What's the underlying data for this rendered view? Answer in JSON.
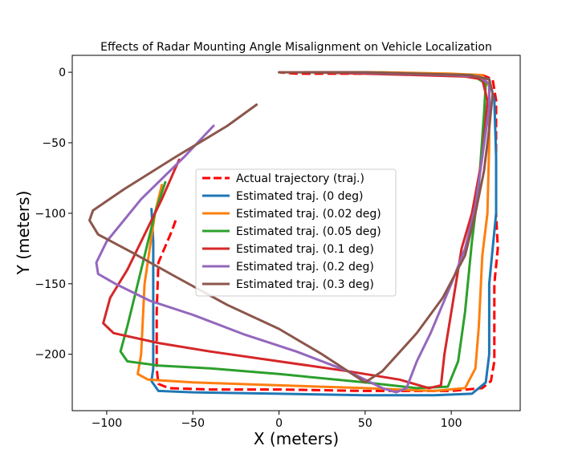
{
  "chart_data": {
    "type": "line",
    "title": "Effects of Radar Mounting Angle Misalignment on Vehicle Localization",
    "xlabel": "X (meters)",
    "ylabel": "Y (meters)",
    "xlim": [
      -120,
      140
    ],
    "ylim": [
      -240,
      12
    ],
    "xticks": [
      -100,
      -50,
      0,
      50,
      100
    ],
    "yticks": [
      0,
      -50,
      -100,
      -150,
      -200
    ],
    "grid": false,
    "legend_position": "center",
    "series": [
      {
        "name": "Actual trajectory (traj.)",
        "color": "#ff0000",
        "style": "dashed",
        "points": [
          [
            -60,
            -105
          ],
          [
            -62,
            -112
          ],
          [
            -70,
            -135
          ],
          [
            -71,
            -170
          ],
          [
            -71,
            -210
          ],
          [
            -70,
            -221
          ],
          [
            -64,
            -224
          ],
          [
            -40,
            -225
          ],
          [
            0,
            -225
          ],
          [
            50,
            -226
          ],
          [
            100,
            -226
          ],
          [
            118,
            -224
          ],
          [
            123,
            -219
          ],
          [
            125,
            -205
          ],
          [
            125,
            -150
          ],
          [
            127,
            -125
          ],
          [
            126,
            -100
          ],
          [
            126,
            -60
          ],
          [
            126,
            -20
          ],
          [
            124,
            -5
          ],
          [
            118,
            -2
          ],
          [
            80,
            -1
          ],
          [
            40,
            -1
          ],
          [
            10,
            -1
          ],
          [
            0,
            0
          ]
        ]
      },
      {
        "name": "Estimated traj. (0 deg)",
        "color": "#1f77b4",
        "style": "solid",
        "points": [
          [
            -74,
            -97
          ],
          [
            -73,
            -120
          ],
          [
            -73,
            -170
          ],
          [
            -73,
            -210
          ],
          [
            -74,
            -219
          ],
          [
            -70,
            -226
          ],
          [
            -50,
            -227
          ],
          [
            0,
            -228
          ],
          [
            50,
            -229
          ],
          [
            90,
            -229
          ],
          [
            112,
            -228
          ],
          [
            120,
            -220
          ],
          [
            122,
            -200
          ],
          [
            122,
            -150
          ],
          [
            126,
            -100
          ],
          [
            126,
            -60
          ],
          [
            125,
            -20
          ],
          [
            122,
            -5
          ],
          [
            115,
            -2
          ],
          [
            80,
            -1
          ],
          [
            40,
            0
          ],
          [
            15,
            0
          ]
        ]
      },
      {
        "name": "Estimated traj. (0.02 deg)",
        "color": "#ff7f0e",
        "style": "solid",
        "points": [
          [
            -68,
            -80
          ],
          [
            -72,
            -100
          ],
          [
            -78,
            -150
          ],
          [
            -80,
            -200
          ],
          [
            -82,
            -214
          ],
          [
            -76,
            -218
          ],
          [
            -50,
            -220
          ],
          [
            0,
            -222
          ],
          [
            50,
            -224
          ],
          [
            90,
            -226
          ],
          [
            108,
            -224
          ],
          [
            114,
            -210
          ],
          [
            116,
            -180
          ],
          [
            118,
            -130
          ],
          [
            121,
            -100
          ],
          [
            122,
            -50
          ],
          [
            122,
            -10
          ],
          [
            118,
            -2
          ],
          [
            100,
            -1
          ],
          [
            60,
            0
          ],
          [
            30,
            0
          ],
          [
            20,
            0
          ]
        ]
      },
      {
        "name": "Estimated traj. (0.05 deg)",
        "color": "#2ca02c",
        "style": "solid",
        "points": [
          [
            -66,
            -78
          ],
          [
            -72,
            -100
          ],
          [
            -82,
            -150
          ],
          [
            -88,
            -180
          ],
          [
            -92,
            -198
          ],
          [
            -88,
            -205
          ],
          [
            -70,
            -208
          ],
          [
            -40,
            -210
          ],
          [
            0,
            -214
          ],
          [
            50,
            -220
          ],
          [
            80,
            -224
          ],
          [
            98,
            -223
          ],
          [
            104,
            -205
          ],
          [
            108,
            -170
          ],
          [
            112,
            -120
          ],
          [
            116,
            -80
          ],
          [
            119,
            -30
          ],
          [
            120,
            -8
          ],
          [
            112,
            -2
          ],
          [
            80,
            -1
          ],
          [
            50,
            0
          ],
          [
            20,
            0
          ]
        ]
      },
      {
        "name": "Estimated traj. (0.1 deg)",
        "color": "#d62728",
        "style": "solid",
        "points": [
          [
            -58,
            -62
          ],
          [
            -68,
            -90
          ],
          [
            -88,
            -140
          ],
          [
            -98,
            -160
          ],
          [
            -102,
            -178
          ],
          [
            -96,
            -185
          ],
          [
            -70,
            -192
          ],
          [
            -40,
            -198
          ],
          [
            0,
            -205
          ],
          [
            40,
            -212
          ],
          [
            70,
            -218
          ],
          [
            87,
            -224
          ],
          [
            94,
            -222
          ],
          [
            96,
            -200
          ],
          [
            100,
            -170
          ],
          [
            106,
            -125
          ],
          [
            112,
            -100
          ],
          [
            118,
            -60
          ],
          [
            121,
            -20
          ],
          [
            118,
            -5
          ],
          [
            108,
            -3
          ],
          [
            80,
            -2
          ],
          [
            50,
            -1
          ],
          [
            20,
            0
          ]
        ]
      },
      {
        "name": "Estimated traj. (0.2 deg)",
        "color": "#9467bd",
        "style": "solid",
        "points": [
          [
            -38,
            -38
          ],
          [
            -55,
            -60
          ],
          [
            -80,
            -90
          ],
          [
            -100,
            -120
          ],
          [
            -106,
            -135
          ],
          [
            -105,
            -143
          ],
          [
            -95,
            -150
          ],
          [
            -75,
            -162
          ],
          [
            -50,
            -172
          ],
          [
            -20,
            -186
          ],
          [
            10,
            -198
          ],
          [
            40,
            -212
          ],
          [
            60,
            -224
          ],
          [
            68,
            -227
          ],
          [
            74,
            -224
          ],
          [
            80,
            -205
          ],
          [
            88,
            -185
          ],
          [
            100,
            -150
          ],
          [
            108,
            -125
          ],
          [
            114,
            -95
          ],
          [
            118,
            -60
          ],
          [
            122,
            -25
          ],
          [
            122,
            -8
          ],
          [
            116,
            -3
          ],
          [
            100,
            -2
          ],
          [
            70,
            -1
          ],
          [
            40,
            0
          ],
          [
            20,
            0
          ]
        ]
      },
      {
        "name": "Estimated traj. (0.3 deg)",
        "color": "#8c564b",
        "style": "solid",
        "points": [
          [
            -13,
            -23
          ],
          [
            -30,
            -38
          ],
          [
            -60,
            -60
          ],
          [
            -90,
            -83
          ],
          [
            -108,
            -98
          ],
          [
            -110,
            -105
          ],
          [
            -105,
            -115
          ],
          [
            -85,
            -128
          ],
          [
            -60,
            -145
          ],
          [
            -30,
            -165
          ],
          [
            0,
            -182
          ],
          [
            25,
            -200
          ],
          [
            40,
            -212
          ],
          [
            50,
            -220
          ],
          [
            60,
            -212
          ],
          [
            80,
            -185
          ],
          [
            95,
            -160
          ],
          [
            108,
            -130
          ],
          [
            114,
            -100
          ],
          [
            119,
            -70
          ],
          [
            122,
            -40
          ],
          [
            124,
            -15
          ],
          [
            122,
            -5
          ],
          [
            110,
            -2
          ],
          [
            80,
            -1
          ],
          [
            50,
            0
          ],
          [
            20,
            0
          ],
          [
            0,
            0
          ]
        ]
      }
    ]
  }
}
